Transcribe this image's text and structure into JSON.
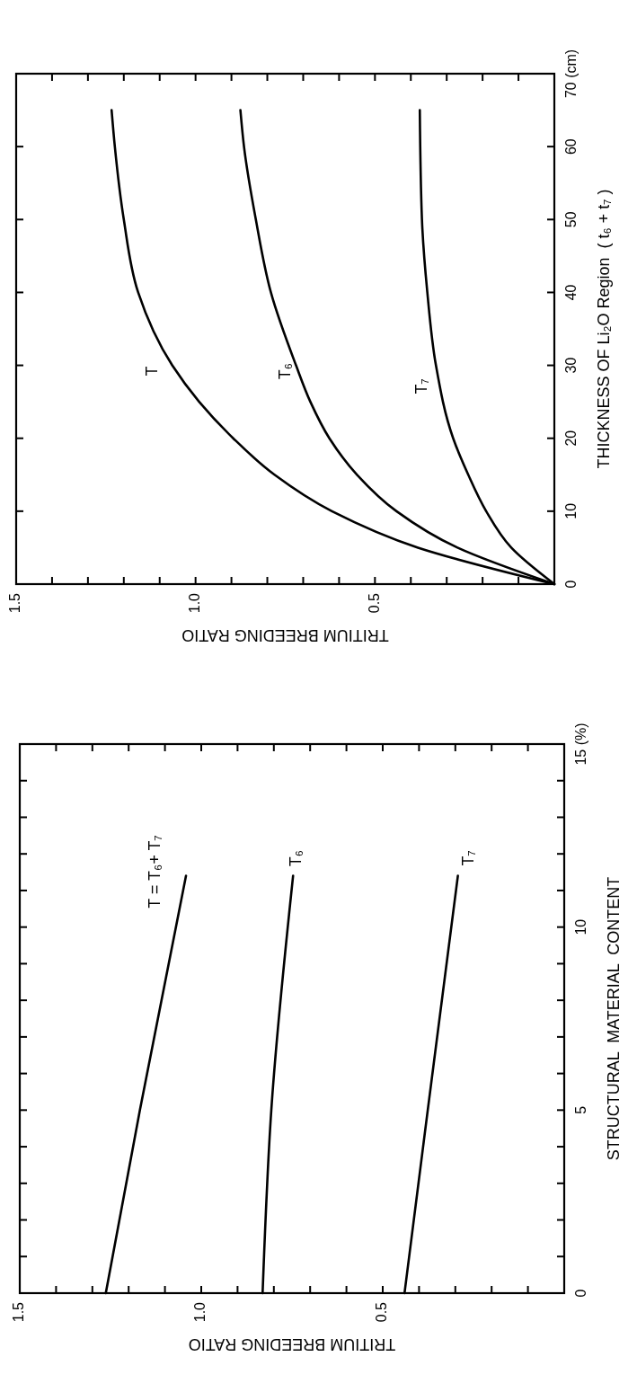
{
  "chart_data": [
    {
      "type": "line",
      "ylabel": "THICKNESS OF Li₂O Region  ( t₆ + t₇ )",
      "xlabel": "TRITIUM BREEDING RATIO",
      "ylim": [
        0,
        70
      ],
      "xlim": [
        1.5,
        0
      ],
      "yticks": [
        0,
        10,
        20,
        30,
        40,
        50,
        60,
        {
          "value": 70,
          "label": "70 (cm)"
        }
      ],
      "xticks": [
        {
          "value": 0,
          "label": null
        },
        {
          "value": 0.1,
          "label": null
        },
        {
          "value": 0.2,
          "label": null
        },
        {
          "value": 0.3,
          "label": null
        },
        {
          "value": 0.4,
          "label": null
        },
        {
          "value": 0.5,
          "label": "0.5"
        },
        {
          "value": 0.6,
          "label": null
        },
        {
          "value": 0.7,
          "label": null
        },
        {
          "value": 0.8,
          "label": null
        },
        {
          "value": 0.9,
          "label": null
        },
        {
          "value": 1,
          "label": "1.0"
        },
        {
          "value": 1.1,
          "label": null
        },
        {
          "value": 1.2,
          "label": null
        },
        {
          "value": 1.3,
          "label": null
        },
        {
          "value": 1.4,
          "label": null
        },
        {
          "value": 1.5,
          "label": "1.5"
        }
      ],
      "grid": false,
      "marker": "none",
      "line_style": "solid",
      "series": [
        {
          "color": "#000000",
          "x": [
            0,
            0.38,
            0.62,
            0.78,
            0.895,
            0.99,
            1.065,
            1.16,
            1.2,
            1.225,
            1.234
          ],
          "values": [
            0,
            5,
            10,
            15,
            20,
            25,
            30,
            40,
            50,
            60,
            65
          ]
        },
        {
          "color": "#000000",
          "x": [
            0,
            0.27,
            0.44,
            0.55,
            0.627,
            0.68,
            0.72,
            0.79,
            0.832,
            0.865,
            0.875
          ],
          "values": [
            0,
            5,
            10,
            15,
            20,
            25,
            30,
            40,
            50,
            60,
            65
          ]
        },
        {
          "color": "#000000",
          "x": [
            0,
            0.12,
            0.19,
            0.24,
            0.282,
            0.33,
            0.354,
            0.369,
            0.375
          ],
          "values": [
            0,
            5,
            10,
            15,
            20,
            30,
            40,
            50,
            65
          ]
        }
      ],
      "annotations": [
        "T",
        "T₆",
        "T₇"
      ]
    },
    {
      "type": "line",
      "ylabel": "STRUCTURAL  MATERIAL  CONTENT",
      "xlabel": "TRITIUM BREEDING RATIO",
      "ylim": [
        0,
        15
      ],
      "xlim": [
        1.5,
        0
      ],
      "yticks": [
        0,
        {
          "value": 1,
          "label": null
        },
        {
          "value": 2,
          "label": null
        },
        {
          "value": 3,
          "label": null
        },
        {
          "value": 4,
          "label": null
        },
        5,
        {
          "value": 6,
          "label": null
        },
        {
          "value": 7,
          "label": null
        },
        {
          "value": 8,
          "label": null
        },
        {
          "value": 9,
          "label": null
        },
        10,
        {
          "value": 11,
          "label": null
        },
        {
          "value": 12,
          "label": null
        },
        {
          "value": 13,
          "label": null
        },
        {
          "value": 14,
          "label": null
        },
        {
          "value": 15,
          "label": "15 (%)"
        }
      ],
      "xticks": [
        {
          "value": 0,
          "label": null
        },
        {
          "value": 0.1,
          "label": null
        },
        {
          "value": 0.2,
          "label": null
        },
        {
          "value": 0.3,
          "label": null
        },
        {
          "value": 0.4,
          "label": null
        },
        {
          "value": 0.5,
          "label": "0.5"
        },
        {
          "value": 0.6,
          "label": null
        },
        {
          "value": 0.7,
          "label": null
        },
        {
          "value": 0.8,
          "label": null
        },
        {
          "value": 0.9,
          "label": null
        },
        {
          "value": 1,
          "label": "1.0"
        },
        {
          "value": 1.1,
          "label": null
        },
        {
          "value": 1.2,
          "label": null
        },
        {
          "value": 1.3,
          "label": null
        },
        {
          "value": 1.4,
          "label": null
        },
        {
          "value": 1.5,
          "label": "1.5"
        }
      ],
      "grid": false,
      "marker": "none",
      "line_style": "solid",
      "series": [
        {
          "color": "#000000",
          "x": [
            1.263,
            1.169,
            1.042
          ],
          "values": [
            0,
            5,
            11.4
          ]
        },
        {
          "color": "#000000",
          "x": [
            0.831,
            0.807,
            0.747
          ],
          "values": [
            0,
            5,
            11.4
          ]
        },
        {
          "color": "#000000",
          "x": [
            0.44,
            0.376,
            0.293
          ],
          "values": [
            0,
            5,
            11.4
          ]
        }
      ],
      "annotations": [
        "T = T₆+ T₇",
        "T₆",
        "T₇"
      ]
    }
  ]
}
